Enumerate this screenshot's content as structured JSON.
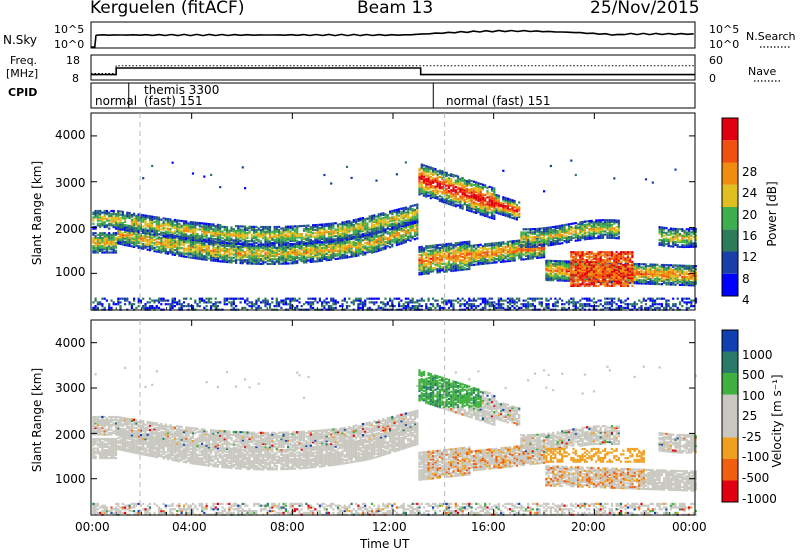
{
  "header": {
    "radar": "Kerguelen (fitACF)",
    "beam": "Beam 13",
    "date": "25/Nov/2015"
  },
  "panels": {
    "nsky_label": "N.Sky",
    "nsky_ticks": [
      "10^5",
      "10^0"
    ],
    "nsearch_label": "N.Search",
    "nsearch_ticks": [
      "10^5",
      "10^0"
    ],
    "freq_label_1": "Freq.",
    "freq_label_2": "[MHz]",
    "freq_ticks": [
      "18",
      "8"
    ],
    "nave_label": "Nave",
    "nave_ticks": [
      "60",
      "0"
    ],
    "cpid_label": "CPID",
    "cpid_segments": [
      "normal",
      "themis 3300",
      "(fast) 151",
      "normal (fast) 151"
    ]
  },
  "x_axis": {
    "label": "Time UT",
    "ticks": [
      "00:00",
      "04:00",
      "08:00",
      "12:00",
      "16:00",
      "20:00",
      "00:00"
    ]
  },
  "colors": {
    "power_scale": [
      "#0000ff",
      "#1a3fa8",
      "#2e7d5a",
      "#3fae4f",
      "#e0c020",
      "#f08c10",
      "#f05010",
      "#e00010"
    ],
    "velocity_scale": [
      "#1040b0",
      "#2a7a6a",
      "#40b040",
      "#c8c8c0",
      "#c8c8c0",
      "#f0a020",
      "#f06010",
      "#e00010"
    ]
  },
  "chart_data": [
    {
      "type": "heatmap",
      "title": "",
      "xlabel": "Time UT",
      "ylabel": "Slant Range [km]",
      "ylim": [
        200,
        4500
      ],
      "yticks": [
        "4000",
        "3000",
        "2000",
        "1000"
      ],
      "colorbar_label": "Power [dB]",
      "colorbar_ticks": [
        "28",
        "24",
        "20",
        "16",
        "12",
        "8",
        "4"
      ],
      "color_range": [
        0,
        32
      ]
    },
    {
      "type": "heatmap",
      "title": "",
      "xlabel": "Time UT",
      "ylabel": "Slant Range [km]",
      "ylim": [
        200,
        4500
      ],
      "yticks": [
        "4000",
        "3000",
        "2000",
        "1000"
      ],
      "colorbar_label": "Velocity [m s⁻¹]",
      "colorbar_ticks": [
        "1000",
        "500",
        "100",
        "25",
        "-25",
        "-100",
        "-500",
        "-1000"
      ],
      "color_range": [
        -1000,
        1000
      ]
    }
  ]
}
